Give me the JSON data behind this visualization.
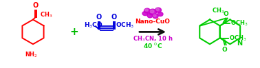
{
  "bg_color": "#ffffff",
  "r1_color": "#ff0000",
  "r2_color": "#0000dd",
  "cat_color": "#cc00cc",
  "prod_color": "#00cc00",
  "plus_color": "#00bb00",
  "nano_color": "#ff0000",
  "arrow_color": "#111111",
  "cond_color": "#cc00cc",
  "temp_color": "#00cc00",
  "nano_text": "Nano-CuO",
  "cond_text": "CH$_3$CN, 10 h",
  "temp_text": "40 $^0$C"
}
